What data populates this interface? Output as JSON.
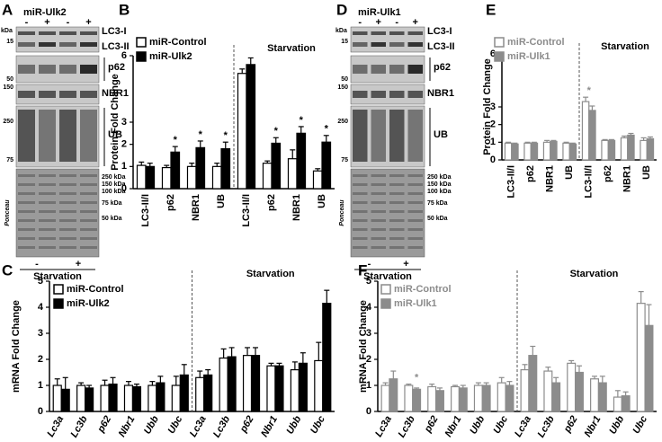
{
  "blots": [
    {
      "letter": "A",
      "title": "miR-Ulk2",
      "lanes": [
        "-",
        "+",
        "-",
        "+"
      ],
      "kda": "kDa",
      "markers": [
        15,
        50,
        150,
        250,
        75
      ],
      "bands": [
        "LC3-I",
        "LC3-II",
        "p62",
        "NBR1",
        "UB"
      ],
      "ponceau_markers": [
        "250 kDa",
        "150 kDa",
        "100 kDa",
        "75 kDa",
        "50 kDa"
      ],
      "stain": "Ponceau",
      "treatment": [
        "-",
        "+"
      ],
      "treatment_label": "Starvation"
    },
    {
      "letter": "D",
      "title": "miR-Ulk1",
      "lanes": [
        "-",
        "+",
        "-",
        "+"
      ],
      "kda": "kDa",
      "markers": [
        15,
        50,
        150,
        250,
        75
      ],
      "bands": [
        "LC3-I",
        "LC3-II",
        "p62",
        "NBR1",
        "UB"
      ],
      "ponceau_markers": [
        "250 kDa",
        "150 kDa",
        "100 kDa",
        "75 kDa",
        "50 kDa"
      ],
      "stain": "Ponceau",
      "treatment": [
        "-",
        "+"
      ],
      "treatment_label": "Starvation"
    }
  ],
  "chart_data": [
    {
      "type": "bar",
      "label": "B",
      "ylabel": "Protein Fold Change",
      "group_label": "Starvation",
      "legend": "upper left",
      "text_color": "#000000",
      "categories": [
        "LC3-II/I",
        "p62",
        "NBR1",
        "UB",
        "LC3-II/I",
        "p62",
        "NBR1",
        "UB"
      ],
      "series": [
        {
          "name": "miR-Control",
          "color": "#ffffff",
          "edgecolor": "#000000",
          "values": [
            1.05,
            0.95,
            1.0,
            1.0,
            5.2,
            1.15,
            1.35,
            0.8
          ],
          "errors": [
            0.15,
            0.1,
            0.15,
            0.15,
            0.2,
            0.1,
            0.4,
            0.1
          ]
        },
        {
          "name": "miR-Ulk2",
          "color": "#000000",
          "edgecolor": "#000000",
          "values": [
            1.0,
            1.65,
            1.85,
            1.8,
            5.6,
            2.05,
            2.5,
            2.1
          ],
          "errors": [
            0.15,
            0.25,
            0.3,
            0.3,
            0.3,
            0.25,
            0.3,
            0.3
          ]
        }
      ],
      "ylim": [
        0,
        6
      ],
      "yticks": [
        0,
        1,
        2,
        3,
        6
      ],
      "annotations": [
        {
          "text": "*",
          "index": 1
        },
        {
          "text": "*",
          "index": 2
        },
        {
          "text": "*",
          "index": 3
        },
        {
          "text": "*",
          "index": 5
        },
        {
          "text": "*",
          "index": 6
        },
        {
          "text": "*",
          "index": 7
        }
      ]
    },
    {
      "type": "bar",
      "label": "C",
      "ylabel": "mRNA Fold Change",
      "group_label": "Starvation",
      "legend": "upper left",
      "text_color": "#000000",
      "italic_categories": true,
      "categories": [
        "Lc3a",
        "Lc3b",
        "p62",
        "Nbr1",
        "Ubb",
        "Ubc",
        "Lc3a",
        "Lc3b",
        "p62",
        "Nbr1",
        "Ubb",
        "Ubc"
      ],
      "series": [
        {
          "name": "miR-Control",
          "color": "#ffffff",
          "edgecolor": "#000000",
          "values": [
            1.0,
            1.0,
            1.0,
            1.0,
            1.0,
            1.0,
            1.3,
            2.05,
            2.15,
            1.75,
            1.6,
            1.95
          ],
          "errors": [
            0.25,
            0.1,
            0.2,
            0.15,
            0.15,
            0.35,
            0.25,
            0.35,
            0.3,
            0.1,
            0.3,
            0.7
          ]
        },
        {
          "name": "miR-Ulk2",
          "color": "#000000",
          "edgecolor": "#000000",
          "values": [
            0.85,
            0.9,
            1.05,
            0.95,
            1.1,
            1.4,
            1.4,
            2.1,
            2.15,
            1.75,
            1.85,
            4.15
          ],
          "errors": [
            0.45,
            0.1,
            0.25,
            0.1,
            0.25,
            0.4,
            0.2,
            0.35,
            0.3,
            0.1,
            0.4,
            0.5
          ]
        }
      ],
      "ylim": [
        0,
        5
      ],
      "yticks": [
        0,
        1,
        2,
        3,
        4,
        5
      ],
      "annotations": []
    },
    {
      "type": "bar",
      "label": "E",
      "ylabel": "Protein Fold Change",
      "group_label": "Starvation",
      "legend": "upper left",
      "text_color": "#8c8c8c",
      "categories": [
        "LC3-II/I",
        "p62",
        "NBR1",
        "UB",
        "LC3-II/I",
        "p62",
        "NBR1",
        "UB"
      ],
      "series": [
        {
          "name": "miR-Control",
          "color": "#ffffff",
          "edgecolor": "#8c8c8c",
          "values": [
            0.95,
            0.95,
            1.0,
            0.95,
            3.3,
            1.1,
            1.25,
            1.1
          ],
          "errors": [
            0.05,
            0.05,
            0.1,
            0.05,
            0.25,
            0.05,
            0.1,
            0.15
          ]
        },
        {
          "name": "miR-Ulk1",
          "color": "#8c8c8c",
          "edgecolor": "#8c8c8c",
          "values": [
            0.9,
            0.95,
            1.05,
            0.9,
            2.8,
            1.1,
            1.4,
            1.2
          ],
          "errors": [
            0.05,
            0.05,
            0.05,
            0.05,
            0.25,
            0.05,
            0.1,
            0.1
          ]
        }
      ],
      "ylim": [
        0,
        6
      ],
      "yticks": [
        0,
        1,
        2,
        3,
        6
      ],
      "annotations": [
        {
          "text": "*",
          "index": 4
        }
      ]
    },
    {
      "type": "bar",
      "label": "F",
      "ylabel": "mRNA Fold Change",
      "group_label": "Starvation",
      "legend": "upper left",
      "text_color": "#8c8c8c",
      "italic_categories": true,
      "categories": [
        "Lc3a",
        "Lc3b",
        "p62",
        "Nbr1",
        "Ubb",
        "Ubc",
        "Lc3a",
        "Lc3b",
        "p62",
        "Nbr1",
        "Ubb",
        "Ubc"
      ],
      "series": [
        {
          "name": "miR-Control",
          "color": "#ffffff",
          "edgecolor": "#8c8c8c",
          "values": [
            1.0,
            1.0,
            0.95,
            0.95,
            1.0,
            1.1,
            1.6,
            1.55,
            1.85,
            1.25,
            0.55,
            4.15
          ],
          "errors": [
            0.1,
            0.05,
            0.1,
            0.05,
            0.1,
            0.2,
            0.2,
            0.15,
            0.1,
            0.1,
            0.25,
            0.45
          ]
        },
        {
          "name": "miR-Ulk1",
          "color": "#8c8c8c",
          "edgecolor": "#8c8c8c",
          "values": [
            1.25,
            0.85,
            0.8,
            0.9,
            1.0,
            1.0,
            2.15,
            1.1,
            1.5,
            1.1,
            0.6,
            3.3
          ],
          "errors": [
            0.3,
            0.05,
            0.1,
            0.1,
            0.1,
            0.15,
            0.35,
            0.2,
            0.25,
            0.25,
            0.15,
            0.8
          ]
        }
      ],
      "ylim": [
        0,
        5
      ],
      "yticks": [
        0,
        1,
        2,
        3,
        4,
        5
      ],
      "annotations": [
        {
          "text": "*",
          "index": 1
        }
      ]
    }
  ]
}
